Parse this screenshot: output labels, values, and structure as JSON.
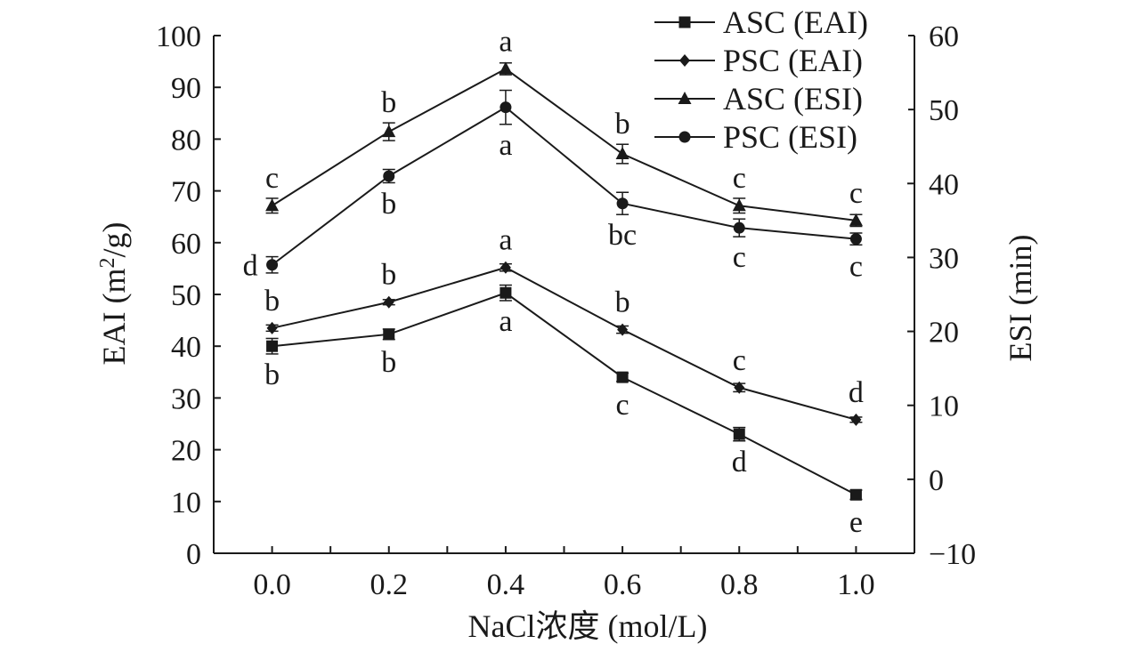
{
  "chart_data": {
    "type": "line",
    "xlabel": "NaCl浓度 (mol/L)",
    "ylabel_left_prefix": "EAI (m",
    "ylabel_left_sup": "2",
    "ylabel_left_suffix": "/g)",
    "ylabel_right": "ESI (min)",
    "x": [
      0.0,
      0.2,
      0.4,
      0.6,
      0.8,
      1.0
    ],
    "x_tick_labels": [
      "0.0",
      "0.2",
      "0.4",
      "0.6",
      "0.8",
      "1.0"
    ],
    "xlim": [
      -0.1,
      1.1
    ],
    "ylim_left": [
      0,
      100
    ],
    "y_left_ticks": [
      0,
      10,
      20,
      30,
      40,
      50,
      60,
      70,
      80,
      90,
      100
    ],
    "ylim_right": [
      -10,
      60
    ],
    "y_right_ticks": [
      -10,
      0,
      10,
      20,
      30,
      40,
      50,
      60
    ],
    "y_right_tick_labels": [
      "−10",
      "0",
      "10",
      "20",
      "30",
      "40",
      "50",
      "60"
    ],
    "legend_position": "top-right",
    "series": [
      {
        "name": "ASC (EAI)",
        "axis": "left",
        "marker": "square",
        "values": [
          40.0,
          42.3,
          50.3,
          34.0,
          23.0,
          11.3
        ],
        "errors": [
          1.5,
          1.0,
          1.5,
          0.8,
          1.3,
          0.9
        ],
        "letters": [
          "b",
          "b",
          "a",
          "c",
          "d",
          "e"
        ],
        "letter_positions": [
          "below",
          "below",
          "below",
          "below",
          "below",
          "below"
        ]
      },
      {
        "name": "PSC (EAI)",
        "axis": "left",
        "marker": "diamond",
        "values": [
          43.5,
          48.5,
          55.2,
          43.2,
          32.0,
          25.8
        ],
        "errors": [
          0.6,
          0.5,
          0.7,
          0.7,
          0.8,
          0.5
        ],
        "letters": [
          "b",
          "b",
          "a",
          "b",
          "c",
          "d"
        ],
        "letter_positions": [
          "above",
          "above",
          "above",
          "above",
          "above",
          "above"
        ]
      },
      {
        "name": "ASC (ESI)",
        "axis": "right",
        "marker": "triangle",
        "values": [
          37.0,
          47.0,
          55.5,
          44.0,
          37.0,
          35.0
        ],
        "errors": [
          1.0,
          1.2,
          0.8,
          1.3,
          1.0,
          0.8
        ],
        "letters": [
          "c",
          "b",
          "a",
          "b",
          "c",
          "c"
        ],
        "letter_positions": [
          "above",
          "above",
          "above",
          "above",
          "above",
          "above"
        ]
      },
      {
        "name": "PSC (ESI)",
        "axis": "right",
        "marker": "circle",
        "values": [
          29.0,
          41.0,
          50.3,
          37.3,
          34.0,
          32.5
        ],
        "errors": [
          1.1,
          0.9,
          2.3,
          1.5,
          1.2,
          0.8
        ],
        "letters": [
          "d",
          "b",
          "a",
          "bc",
          "c",
          "c"
        ],
        "letter_positions": [
          "left",
          "below",
          "below",
          "below",
          "below",
          "below"
        ]
      }
    ]
  }
}
